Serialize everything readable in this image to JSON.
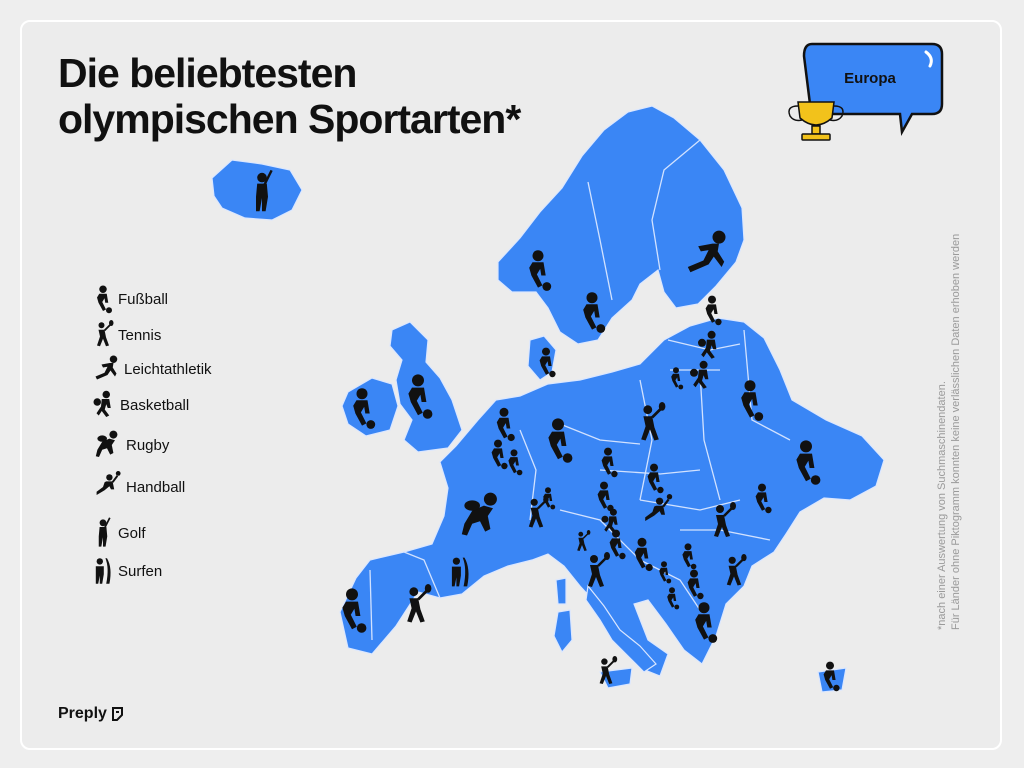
{
  "title_line1": "Die beliebtesten",
  "title_line2": "olympischen Sportarten*",
  "badge": {
    "label": "Europa",
    "trophy_icon": "trophy-icon"
  },
  "legend": [
    {
      "label": "Fußball",
      "icon": "football-icon"
    },
    {
      "label": "Tennis",
      "icon": "tennis-icon"
    },
    {
      "label": "Leichtathletik",
      "icon": "athletics-icon"
    },
    {
      "label": "Basketball",
      "icon": "basketball-icon"
    },
    {
      "label": "Rugby",
      "icon": "rugby-icon"
    },
    {
      "label": "Handball",
      "icon": "handball-icon"
    },
    {
      "label": "Golf",
      "icon": "golf-icon"
    },
    {
      "label": "Surfen",
      "icon": "surfing-icon"
    }
  ],
  "footnote": {
    "line1": "*nach einer Auswertung von Suchmaschinendaten.",
    "line2": "Für Länder ohne Piktogramm konnten keine verlässlichen Daten erhoben werden"
  },
  "brand": "Preply",
  "colors": {
    "land": "#3a86f5",
    "borders": "#cfe0ff",
    "ink": "#111111",
    "badge": "#3a86f5",
    "trophy": "#f2c21b"
  }
}
